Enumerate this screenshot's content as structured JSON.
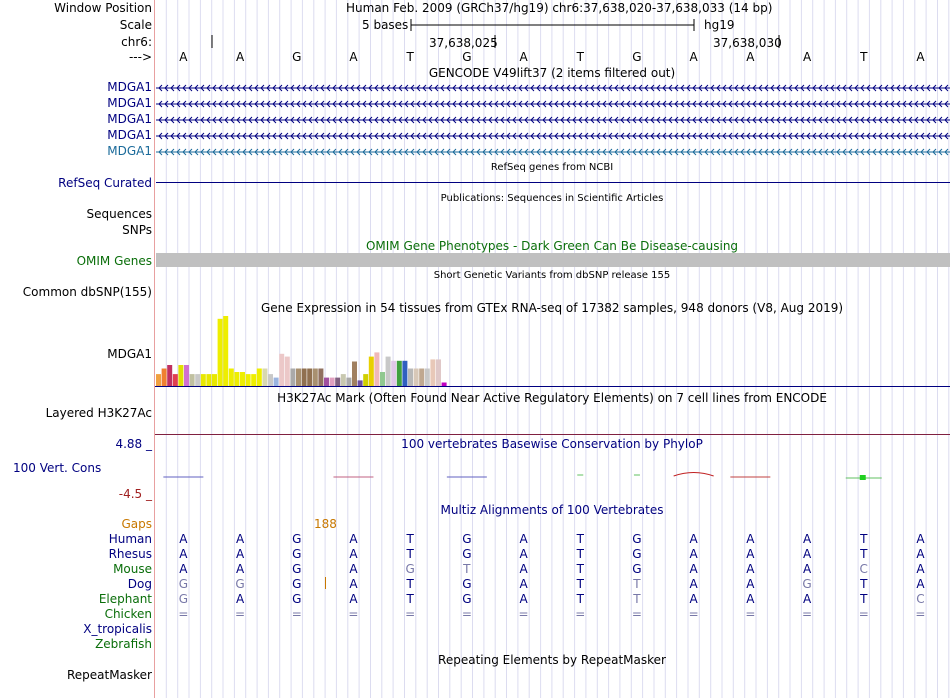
{
  "header": {
    "window_position_label": "Window Position",
    "window_position_value": "Human Feb. 2009 (GRCh37/hg19)   chr6:37,638,020-37,638,033 (14 bp)",
    "scale_label": "Scale",
    "scale_left": "5 bases",
    "scale_right": "hg19",
    "chrom_label": "chr6:",
    "pos1": "37,638,025",
    "pos2": "37,638,030",
    "strand_label": "--->"
  },
  "bases": [
    "A",
    "A",
    "G",
    "A",
    "T",
    "G",
    "A",
    "T",
    "G",
    "A",
    "A",
    "A",
    "T",
    "A"
  ],
  "gencode": {
    "title": "GENCODE V49lift37 (2 items filtered out)",
    "genes": [
      "MDGA1",
      "MDGA1",
      "MDGA1",
      "MDGA1",
      "MDGA1"
    ]
  },
  "refseq": {
    "title": "RefSeq genes from NCBI",
    "label": "RefSeq Curated"
  },
  "publications": {
    "title": "Publications: Sequences in Scientific Articles",
    "label1": "Sequences",
    "label2": "SNPs"
  },
  "omim": {
    "title": "OMIM Gene Phenotypes - Dark Green Can Be Disease-causing",
    "label": "OMIM Genes"
  },
  "dbsnp": {
    "title": "Short Genetic Variants from dbSNP release 155",
    "label": "Common dbSNP(155)"
  },
  "gtex": {
    "title": "Gene Expression in 54 tissues from GTEx RNA-seq of 17382 samples, 948 donors (V8, Aug 2019)",
    "label": "MDGA1",
    "bars": [
      {
        "v": 0.17,
        "c": "#f0a040"
      },
      {
        "v": 0.25,
        "c": "#f08030"
      },
      {
        "v": 0.3,
        "c": "#c03060"
      },
      {
        "v": 0.17,
        "c": "#e04050"
      },
      {
        "v": 0.3,
        "c": "#e0e000"
      },
      {
        "v": 0.3,
        "c": "#d070d0"
      },
      {
        "v": 0.17,
        "c": "#c0c0a0"
      },
      {
        "v": 0.17,
        "c": "#c8c8c8"
      },
      {
        "v": 0.17,
        "c": "#e8e800"
      },
      {
        "v": 0.17,
        "c": "#e8e800"
      },
      {
        "v": 0.17,
        "c": "#e8e800"
      },
      {
        "v": 0.96,
        "c": "#eeee00"
      },
      {
        "v": 1.0,
        "c": "#eeee00"
      },
      {
        "v": 0.25,
        "c": "#eeee00"
      },
      {
        "v": 0.2,
        "c": "#eeee00"
      },
      {
        "v": 0.2,
        "c": "#eeee00"
      },
      {
        "v": 0.17,
        "c": "#eeee00"
      },
      {
        "v": 0.17,
        "c": "#eeee00"
      },
      {
        "v": 0.25,
        "c": "#eeee00"
      },
      {
        "v": 0.25,
        "c": "#d8d8b0"
      },
      {
        "v": 0.17,
        "c": "#c8c8c8"
      },
      {
        "v": 0.12,
        "c": "#9ab4e0"
      },
      {
        "v": 0.46,
        "c": "#ecc8c8"
      },
      {
        "v": 0.42,
        "c": "#ecc8c8"
      },
      {
        "v": 0.25,
        "c": "#aaaaaa"
      },
      {
        "v": 0.25,
        "c": "#a89070"
      },
      {
        "v": 0.25,
        "c": "#907050"
      },
      {
        "v": 0.25,
        "c": "#907050"
      },
      {
        "v": 0.25,
        "c": "#a89070"
      },
      {
        "v": 0.25,
        "c": "#907060"
      },
      {
        "v": 0.12,
        "c": "#a050a0"
      },
      {
        "v": 0.12,
        "c": "#e0a0c0"
      },
      {
        "v": 0.12,
        "c": "#806080"
      },
      {
        "v": 0.17,
        "c": "#c8c8b0"
      },
      {
        "v": 0.12,
        "c": "#aaaaaa"
      },
      {
        "v": 0.35,
        "c": "#a08060"
      },
      {
        "v": 0.08,
        "c": "#7050a0"
      },
      {
        "v": 0.17,
        "c": "#d0d000"
      },
      {
        "v": 0.42,
        "c": "#e8d000"
      },
      {
        "v": 0.48,
        "c": "#f0b8b8"
      },
      {
        "v": 0.2,
        "c": "#90c890"
      },
      {
        "v": 0.42,
        "c": "#c8c8c8"
      },
      {
        "v": 0.36,
        "c": "#e0c8e8"
      },
      {
        "v": 0.36,
        "c": "#40a040"
      },
      {
        "v": 0.36,
        "c": "#3060c0"
      },
      {
        "v": 0.25,
        "c": "#b8b8b8"
      },
      {
        "v": 0.25,
        "c": "#d8c8b8"
      },
      {
        "v": 0.25,
        "c": "#c0a890"
      },
      {
        "v": 0.25,
        "c": "#c8c8c8"
      },
      {
        "v": 0.38,
        "c": "#e8c8b8"
      },
      {
        "v": 0.38,
        "c": "#e0c8c8"
      },
      {
        "v": 0.05,
        "c": "#c000c0"
      }
    ]
  },
  "h3k27ac": {
    "title": "H3K27Ac Mark (Often Found Near Active Regulatory Elements) on 7 cell lines from ENCODE",
    "label": "Layered H3K27Ac"
  },
  "conservation": {
    "title": "100 vertebrates Basewise Conservation by PhyloP",
    "label": "100 Vert. Cons",
    "ymax": "4.88 _",
    "ymin": "-4.5 _",
    "marks": [
      {
        "i": 0,
        "color": "#6060c0",
        "type": "flat"
      },
      {
        "i": 3,
        "color": "#c06080",
        "type": "flat"
      },
      {
        "i": 5,
        "color": "#6060c0",
        "type": "flat"
      },
      {
        "i": 7,
        "color": "#60c060",
        "type": "dot"
      },
      {
        "i": 8,
        "color": "#60c060",
        "type": "dot"
      },
      {
        "i": 9,
        "color": "#c02020",
        "type": "bump"
      },
      {
        "i": 10,
        "color": "#c04040",
        "type": "flat"
      },
      {
        "i": 12,
        "color": "#20d020",
        "type": "peak"
      }
    ]
  },
  "multiz": {
    "title": "Multiz Alignments of 100 Vertebrates",
    "gaps_label": "Gaps",
    "gaps_value": "188",
    "species": [
      {
        "name": "Human",
        "color": "#000080",
        "seq": [
          "A",
          "A",
          "G",
          "A",
          "T",
          "G",
          "A",
          "T",
          "G",
          "A",
          "A",
          "A",
          "T",
          "A"
        ],
        "dim": []
      },
      {
        "name": "Rhesus",
        "color": "#000080",
        "seq": [
          "A",
          "A",
          "G",
          "A",
          "T",
          "G",
          "A",
          "T",
          "G",
          "A",
          "A",
          "A",
          "T",
          "A"
        ],
        "dim": []
      },
      {
        "name": "Mouse",
        "color": "#0a6e0a",
        "seq": [
          "A",
          "A",
          "G",
          "A",
          "G",
          "T",
          "A",
          "T",
          "G",
          "A",
          "A",
          "A",
          "C",
          "A"
        ],
        "dim": [
          4,
          5,
          12
        ]
      },
      {
        "name": "Dog",
        "color": "#000080",
        "seq": [
          "G",
          "G",
          "G",
          "A",
          "T",
          "G",
          "A",
          "T",
          "T",
          "A",
          "A",
          "G",
          "T",
          "A"
        ],
        "dim": [
          0,
          1,
          8,
          11
        ]
      },
      {
        "name": "Elephant",
        "color": "#0a6e0a",
        "seq": [
          "G",
          "A",
          "G",
          "A",
          "T",
          "G",
          "A",
          "T",
          "T",
          "A",
          "A",
          "A",
          "T",
          "C"
        ],
        "dim": [
          0,
          8,
          13
        ]
      },
      {
        "name": "Chicken",
        "color": "#0a6e0a",
        "seq": [
          "=",
          "=",
          "=",
          "=",
          "=",
          "=",
          "=",
          "=",
          "=",
          "=",
          "=",
          "=",
          "=",
          "="
        ],
        "dim": [
          0,
          1,
          2,
          3,
          4,
          5,
          6,
          7,
          8,
          9,
          10,
          11,
          12,
          13
        ]
      },
      {
        "name": "X_tropicalis",
        "color": "#000080",
        "seq": [],
        "dim": []
      },
      {
        "name": "Zebrafish",
        "color": "#0a6e0a",
        "seq": [],
        "dim": []
      }
    ]
  },
  "repeatmasker": {
    "title": "Repeating Elements by RepeatMasker",
    "label": "RepeatMasker"
  }
}
